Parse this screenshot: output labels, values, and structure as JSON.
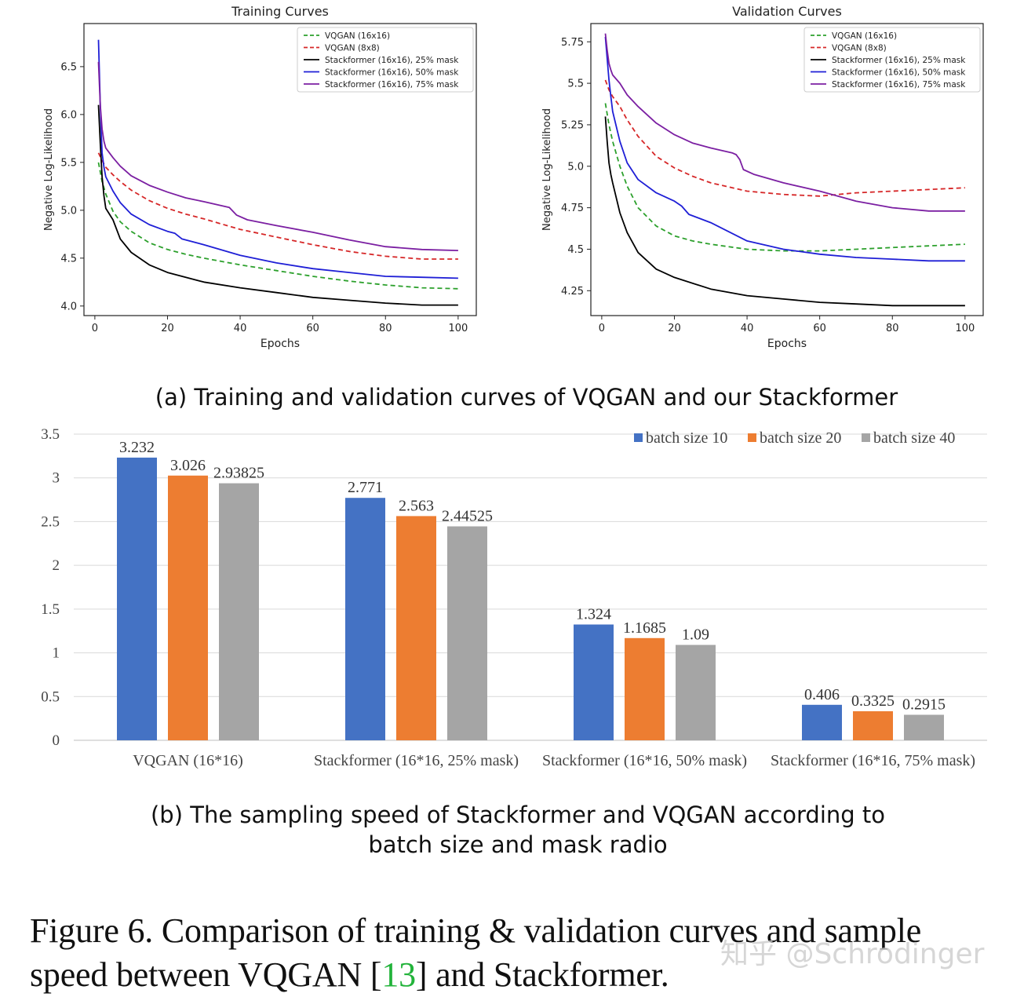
{
  "chart_data": [
    {
      "type": "line",
      "title": "Training Curves",
      "xlabel": "Epochs",
      "ylabel": "Negative Log-Likelihood",
      "xlim": [
        -3,
        105
      ],
      "ylim": [
        3.9,
        6.95
      ],
      "xticks": [
        0,
        20,
        40,
        60,
        80,
        100
      ],
      "yticks": [
        4.0,
        4.5,
        5.0,
        5.5,
        6.0,
        6.5
      ],
      "legend_position": "top-right",
      "series": [
        {
          "name": "VQGAN (16x16)",
          "color": "#2ca02c",
          "dashed": true,
          "x": [
            1,
            2,
            3,
            5,
            7,
            10,
            15,
            20,
            25,
            30,
            40,
            50,
            60,
            70,
            80,
            90,
            100
          ],
          "y": [
            5.5,
            5.3,
            5.17,
            4.99,
            4.88,
            4.78,
            4.66,
            4.59,
            4.54,
            4.5,
            4.43,
            4.37,
            4.31,
            4.26,
            4.22,
            4.19,
            4.18
          ]
        },
        {
          "name": "VQGAN (8x8)",
          "color": "#d62728",
          "dashed": true,
          "x": [
            1,
            2,
            3,
            5,
            7,
            10,
            15,
            20,
            25,
            30,
            40,
            50,
            60,
            70,
            80,
            90,
            100
          ],
          "y": [
            5.6,
            5.52,
            5.45,
            5.37,
            5.3,
            5.21,
            5.1,
            5.02,
            4.96,
            4.91,
            4.8,
            4.72,
            4.64,
            4.57,
            4.52,
            4.49,
            4.49
          ]
        },
        {
          "name": "Stackformer (16x16), 25% mask",
          "color": "#000000",
          "dashed": false,
          "x": [
            1,
            1.5,
            2,
            2.5,
            3,
            5,
            7,
            10,
            15,
            20,
            30,
            40,
            50,
            60,
            70,
            80,
            90,
            100
          ],
          "y": [
            6.1,
            5.7,
            5.35,
            5.15,
            5.02,
            4.9,
            4.7,
            4.56,
            4.43,
            4.35,
            4.25,
            4.19,
            4.14,
            4.09,
            4.06,
            4.03,
            4.01,
            4.01
          ]
        },
        {
          "name": "Stackformer (16x16), 50% mask",
          "color": "#1f1fd6",
          "dashed": false,
          "x": [
            1,
            1.5,
            2,
            2.5,
            3,
            5,
            7,
            10,
            15,
            20,
            22,
            24,
            30,
            40,
            50,
            60,
            70,
            80,
            90,
            100
          ],
          "y": [
            6.78,
            6.1,
            5.6,
            5.45,
            5.35,
            5.2,
            5.08,
            4.96,
            4.85,
            4.78,
            4.76,
            4.7,
            4.64,
            4.53,
            4.45,
            4.39,
            4.35,
            4.31,
            4.3,
            4.29
          ]
        },
        {
          "name": "Stackformer (16x16), 75% mask",
          "color": "#7b1fa2",
          "dashed": false,
          "x": [
            1,
            1.5,
            2,
            2.5,
            3,
            5,
            7,
            10,
            15,
            20,
            25,
            30,
            37,
            39,
            42,
            50,
            60,
            70,
            80,
            90,
            100
          ],
          "y": [
            6.55,
            6.1,
            5.85,
            5.72,
            5.65,
            5.55,
            5.46,
            5.36,
            5.26,
            5.19,
            5.13,
            5.09,
            5.03,
            4.95,
            4.9,
            4.84,
            4.77,
            4.69,
            4.62,
            4.59,
            4.58
          ]
        }
      ]
    },
    {
      "type": "line",
      "title": "Validation Curves",
      "xlabel": "Epochs",
      "ylabel": "Negative Log-Likelihood",
      "xlim": [
        -3,
        105
      ],
      "ylim": [
        4.1,
        5.86
      ],
      "xticks": [
        0,
        20,
        40,
        60,
        80,
        100
      ],
      "yticks": [
        4.25,
        4.5,
        4.75,
        5.0,
        5.25,
        5.5,
        5.75
      ],
      "legend_position": "top-right",
      "series": [
        {
          "name": "VQGAN (16x16)",
          "color": "#2ca02c",
          "dashed": true,
          "x": [
            1,
            2,
            3,
            5,
            7,
            10,
            15,
            20,
            25,
            30,
            40,
            50,
            60,
            70,
            80,
            90,
            100
          ],
          "y": [
            5.38,
            5.25,
            5.15,
            5.0,
            4.88,
            4.75,
            4.64,
            4.58,
            4.55,
            4.53,
            4.5,
            4.49,
            4.49,
            4.5,
            4.51,
            4.52,
            4.53
          ]
        },
        {
          "name": "VQGAN (8x8)",
          "color": "#d62728",
          "dashed": true,
          "x": [
            1,
            2,
            3,
            5,
            7,
            10,
            15,
            20,
            25,
            30,
            40,
            50,
            60,
            70,
            80,
            90,
            100
          ],
          "y": [
            5.52,
            5.46,
            5.42,
            5.36,
            5.28,
            5.18,
            5.06,
            4.99,
            4.94,
            4.9,
            4.85,
            4.83,
            4.82,
            4.84,
            4.85,
            4.86,
            4.87
          ]
        },
        {
          "name": "Stackformer (16x16), 25% mask",
          "color": "#000000",
          "dashed": false,
          "x": [
            1,
            1.5,
            2,
            2.5,
            3,
            5,
            7,
            10,
            15,
            20,
            30,
            40,
            50,
            60,
            70,
            80,
            90,
            100
          ],
          "y": [
            5.3,
            5.15,
            5.02,
            4.95,
            4.9,
            4.72,
            4.6,
            4.48,
            4.38,
            4.33,
            4.26,
            4.22,
            4.2,
            4.18,
            4.17,
            4.16,
            4.16,
            4.16
          ]
        },
        {
          "name": "Stackformer (16x16), 50% mask",
          "color": "#1f1fd6",
          "dashed": false,
          "x": [
            1,
            1.5,
            2,
            2.5,
            3,
            5,
            7,
            10,
            15,
            20,
            22,
            24,
            30,
            40,
            50,
            60,
            70,
            80,
            90,
            100
          ],
          "y": [
            5.78,
            5.65,
            5.52,
            5.42,
            5.33,
            5.15,
            5.02,
            4.92,
            4.84,
            4.79,
            4.76,
            4.71,
            4.66,
            4.55,
            4.5,
            4.47,
            4.45,
            4.44,
            4.43,
            4.43
          ]
        },
        {
          "name": "Stackformer (16x16), 75% mask",
          "color": "#7b1fa2",
          "dashed": false,
          "x": [
            1,
            1.5,
            2,
            2.5,
            3,
            5,
            7,
            10,
            15,
            20,
            25,
            30,
            36,
            37,
            38,
            39,
            42,
            50,
            60,
            70,
            80,
            90,
            100
          ],
          "y": [
            5.8,
            5.7,
            5.62,
            5.58,
            5.55,
            5.5,
            5.43,
            5.36,
            5.26,
            5.19,
            5.14,
            5.11,
            5.08,
            5.07,
            5.04,
            4.98,
            4.95,
            4.9,
            4.85,
            4.79,
            4.75,
            4.73,
            4.73
          ]
        }
      ]
    },
    {
      "type": "bar",
      "categories": [
        "VQGAN (16*16)",
        "Stackformer (16*16, 25% mask)",
        "Stackformer (16*16, 50% mask)",
        "Stackformer (16*16, 75% mask)"
      ],
      "series": [
        {
          "name": "batch size 10",
          "color": "#4472c4",
          "values": [
            3.232,
            2.771,
            1.324,
            0.406
          ],
          "labels": [
            "3.232",
            "2.771",
            "1.324",
            "0.406"
          ]
        },
        {
          "name": "batch size 20",
          "color": "#ed7d31",
          "values": [
            3.026,
            2.563,
            1.1685,
            0.3325
          ],
          "labels": [
            "3.026",
            "2.563",
            "1.1685",
            "0.3325"
          ]
        },
        {
          "name": "batch size 40",
          "color": "#a5a5a5",
          "values": [
            2.93825,
            2.44525,
            1.09,
            0.2915
          ],
          "labels": [
            "2.93825",
            "2.44525",
            "1.09",
            "0.2915"
          ]
        }
      ],
      "ylim": [
        0,
        3.5
      ],
      "yticks": [
        0,
        0.5,
        1,
        1.5,
        2,
        2.5,
        3,
        3.5
      ],
      "ytick_labels": [
        "0",
        "0.5",
        "1",
        "1.5",
        "2",
        "2.5",
        "3",
        "3.5"
      ],
      "legend_position": "top-right",
      "grid": true
    }
  ],
  "subcaption_a": "(a) Training and validation curves of VQGAN and our Stackformer",
  "subcaption_b_line1": "(b) The sampling speed of Stackformer and VQGAN according to",
  "subcaption_b_line2": "batch size and mask radio",
  "caption": {
    "prefix": "Figure 6. Comparison of training & validation curves and sample speed between VQGAN [",
    "ref": "13",
    "suffix": "] and Stackformer."
  },
  "watermark": "知乎 @Schrodinger"
}
